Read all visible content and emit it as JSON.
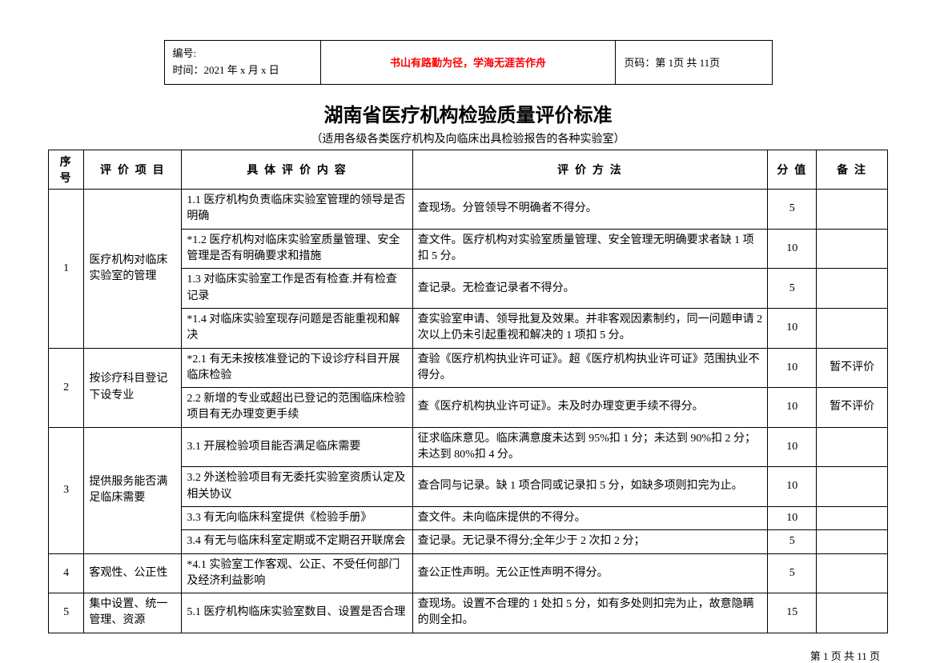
{
  "header": {
    "doc_id_label": "编号:",
    "date_label": "时间：2021 年 x 月 x 日",
    "motto": "书山有路勤为径，学海无涯苦作舟",
    "page_label": "页码：第 1页 共 11页"
  },
  "title": "湖南省医疗机构检验质量评价标准",
  "subtitle": "（适用各级各类医疗机构及向临床出具检验报告的各种实验室）",
  "columns": {
    "seq": "序号",
    "item": "评 价 项 目",
    "content": "具 体 评 价 内 容",
    "method": "评 价 方 法",
    "score": "分 值",
    "note": "备 注"
  },
  "rows": [
    {
      "seq": "1",
      "item": "医疗机构对临床实验室的管理",
      "rowspan": 4,
      "content": "1.1 医疗机构负责临床实验室管理的领导是否明确",
      "method": "查现场。分管领导不明确者不得分。",
      "score": "5",
      "note": ""
    },
    {
      "content": "*1.2 医疗机构对临床实验室质量管理、安全管理是否有明确要求和措施",
      "method": "查文件。医疗机构对实验室质量管理、安全管理无明确要求者缺 1 项扣 5 分。",
      "score": "10",
      "note": ""
    },
    {
      "content": "1.3 对临床实验室工作是否有检查.并有检查记录",
      "method": "查记录。无检查记录者不得分。",
      "score": "5",
      "note": ""
    },
    {
      "content": "*1.4 对临床实验室现存问题是否能重视和解决",
      "method": "查实验室申请、领导批复及效果。并非客观因素制约，同一问题申请 2 次以上仍未引起重视和解决的 1 项扣 5 分。",
      "score": "10",
      "note": ""
    },
    {
      "seq": "2",
      "item": "按诊疗科目登记下设专业",
      "rowspan": 2,
      "content": "*2.1 有无未按核准登记的下设诊疗科目开展临床检验",
      "method": "查验《医疗机构执业许可证》。超《医疗机构执业许可证》范围执业不得分。",
      "score": "10",
      "note": "暂不评价"
    },
    {
      "content": "2.2 新增的专业或超出已登记的范围临床检验项目有无办理变更手续",
      "method": "查《医疗机构执业许可证》。未及时办理变更手续不得分。",
      "score": "10",
      "note": "暂不评价"
    },
    {
      "seq": "3",
      "item": "提供服务能否满足临床需要",
      "rowspan": 4,
      "content": "3.1 开展检验项目能否满足临床需要",
      "method": "征求临床意见。临床满意度未达到 95%扣 1 分；未达到 90%扣 2 分；未达到 80%扣 4 分。",
      "score": "10",
      "note": ""
    },
    {
      "content": "3.2 外送检验项目有无委托实验室资质认定及相关协议",
      "method": "查合同与记录。缺 1 项合同或记录扣 5 分，如缺多项则扣完为止。",
      "score": "10",
      "note": ""
    },
    {
      "content": "3.3 有无向临床科室提供《检验手册》",
      "method": "查文件。未向临床提供的不得分。",
      "score": "10",
      "note": ""
    },
    {
      "content": "3.4 有无与临床科室定期或不定期召开联席会",
      "method": "查记录。无记录不得分;全年少于 2 次扣 2 分；",
      "score": "5",
      "note": ""
    },
    {
      "seq": "4",
      "item": "客观性、公正性",
      "rowspan": 1,
      "content": "*4.1 实验室工作客观、公正、不受任何部门及经济利益影响",
      "method": "查公正性声明。无公正性声明不得分。",
      "score": "5",
      "note": ""
    },
    {
      "seq": "5",
      "item": "集中设置、统一管理、资源",
      "rowspan": 1,
      "content": "5.1 医疗机构临床实验室数目、设置是否合理",
      "method": "查现场。设置不合理的 1 处扣 5 分，如有多处则扣完为止，故意隐瞒的则全扣。",
      "score": "15",
      "note": ""
    }
  ],
  "footer": "第 1 页 共 11 页"
}
